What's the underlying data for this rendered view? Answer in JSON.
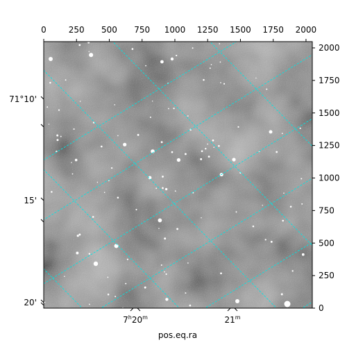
{
  "figure": {
    "xlabel": "pos.eq.ra",
    "top_x_ticks": [
      "0",
      "250",
      "500",
      "750",
      "1000",
      "1250",
      "1500",
      "1750",
      "2000"
    ],
    "top_x_values": [
      0,
      250,
      500,
      750,
      1000,
      1250,
      1500,
      1750,
      2000
    ],
    "right_y_ticks": [
      "0",
      "250",
      "500",
      "750",
      "1000",
      "1250",
      "1500",
      "1750",
      "2000"
    ],
    "right_y_values": [
      0,
      250,
      500,
      750,
      1000,
      1250,
      1500,
      1750,
      2000
    ],
    "left_dec_ticks": [
      "71°10'",
      "15'",
      "20'"
    ],
    "bottom_ra": [
      {
        "base": "7",
        "sup1": "h",
        "mid": "20",
        "sup2": "m"
      },
      {
        "base": "21",
        "sup1": "m",
        "mid": "",
        "sup2": ""
      }
    ],
    "pixel_range": [
      0,
      2048
    ],
    "grid_color": "#00e5e5",
    "image_colors": {
      "dark": "#3a3a3a",
      "light": "#b4b4b4",
      "star": "#ffffff"
    }
  }
}
